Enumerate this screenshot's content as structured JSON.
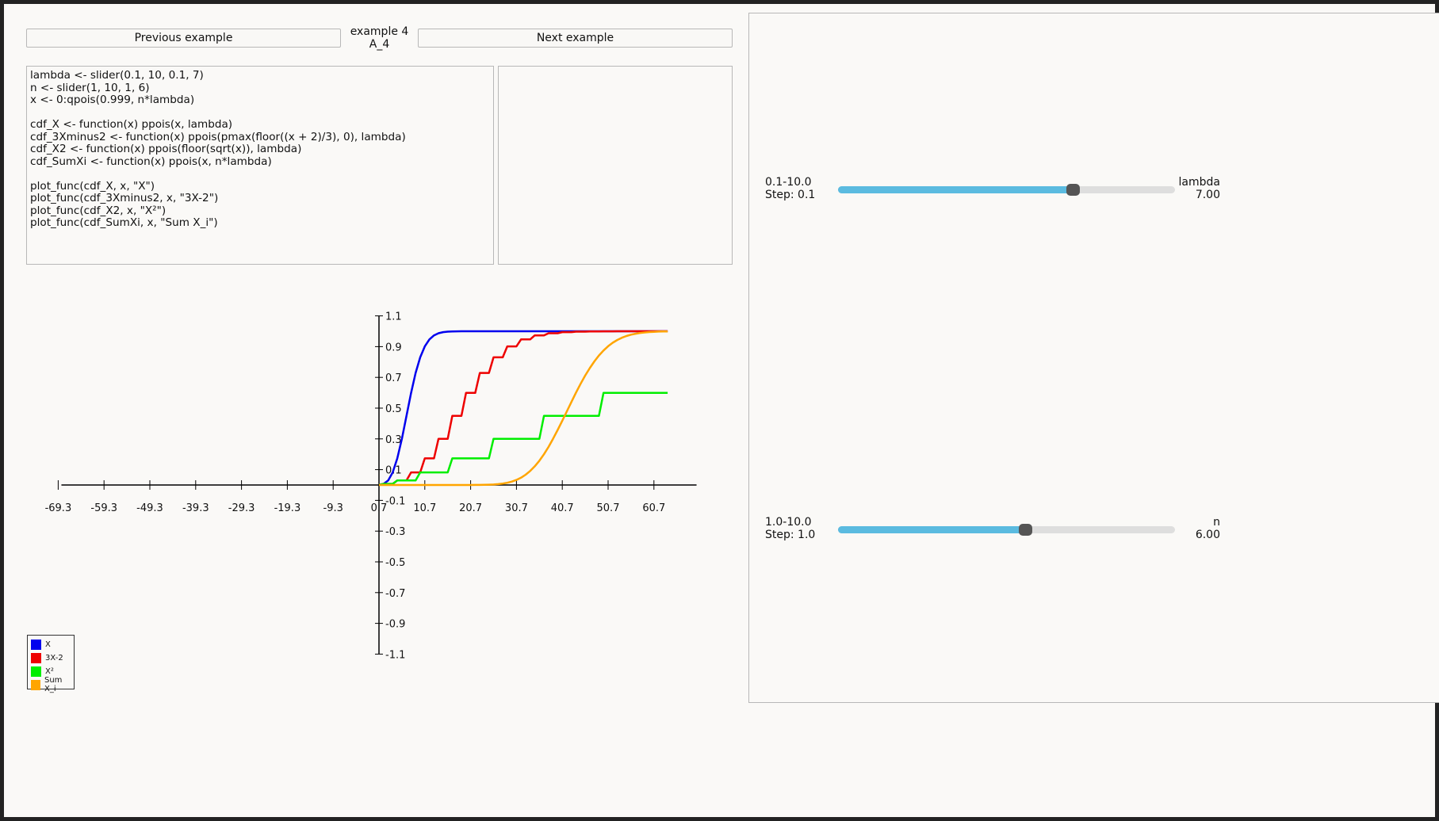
{
  "nav": {
    "prev_label": "Previous example",
    "next_label": "Next example",
    "example_title": "example 4",
    "example_id": "A_4"
  },
  "code": "lambda <- slider(0.1, 10, 0.1, 7)\nn <- slider(1, 10, 1, 6)\nx <- 0:qpois(0.999, n*lambda)\n\ncdf_X <- function(x) ppois(x, lambda)\ncdf_3Xminus2 <- function(x) ppois(pmax(floor((x + 2)/3), 0), lambda)\ncdf_X2 <- function(x) ppois(floor(sqrt(x)), lambda)\ncdf_SumXi <- function(x) ppois(x, n*lambda)\n\nplot_func(cdf_X, x, \"X\")\nplot_func(cdf_3Xminus2, x, \"3X-2\")\nplot_func(cdf_X2, x, \"X²\")\nplot_func(cdf_SumXi, x, \"Sum X_i\")",
  "sliders": [
    {
      "range": "0.1-10.0",
      "step": "Step: 0.1",
      "name": "lambda",
      "value": "7.00",
      "min": 0.1,
      "max": 10.0,
      "current": 7.0
    },
    {
      "range": "1.0-10.0",
      "step": "Step: 1.0",
      "name": "n",
      "value": "6.00",
      "min": 1.0,
      "max": 10.0,
      "current": 6.0
    }
  ],
  "chart_data": {
    "type": "line",
    "title": "",
    "xlabel": "",
    "ylabel": "",
    "x_ticks": [
      "-69.3",
      "-59.3",
      "-49.3",
      "-39.3",
      "-29.3",
      "-19.3",
      "-9.3",
      "0.7",
      "10.7",
      "20.7",
      "30.7",
      "40.7",
      "50.7",
      "60.7"
    ],
    "y_ticks": [
      "1.1",
      "0.9",
      "0.7",
      "0.5",
      "0.3",
      "0.1",
      "-0.1",
      "-0.3",
      "-0.5",
      "-0.7",
      "-0.9",
      "-1.1"
    ],
    "xlim": [
      -69.3,
      69.3
    ],
    "ylim": [
      -1.1,
      1.1
    ],
    "lambda": 7,
    "n": 6,
    "x_max": 63,
    "series": [
      {
        "name": "X",
        "color": "#0000ee",
        "kind": "X"
      },
      {
        "name": "3X-2",
        "color": "#ee0000",
        "kind": "3Xminus2"
      },
      {
        "name": "X²",
        "color": "#00ee00",
        "kind": "X2"
      },
      {
        "name": "Sum X_i",
        "color": "#ffa500",
        "kind": "SumXi"
      }
    ],
    "legend": "bottom-left"
  }
}
